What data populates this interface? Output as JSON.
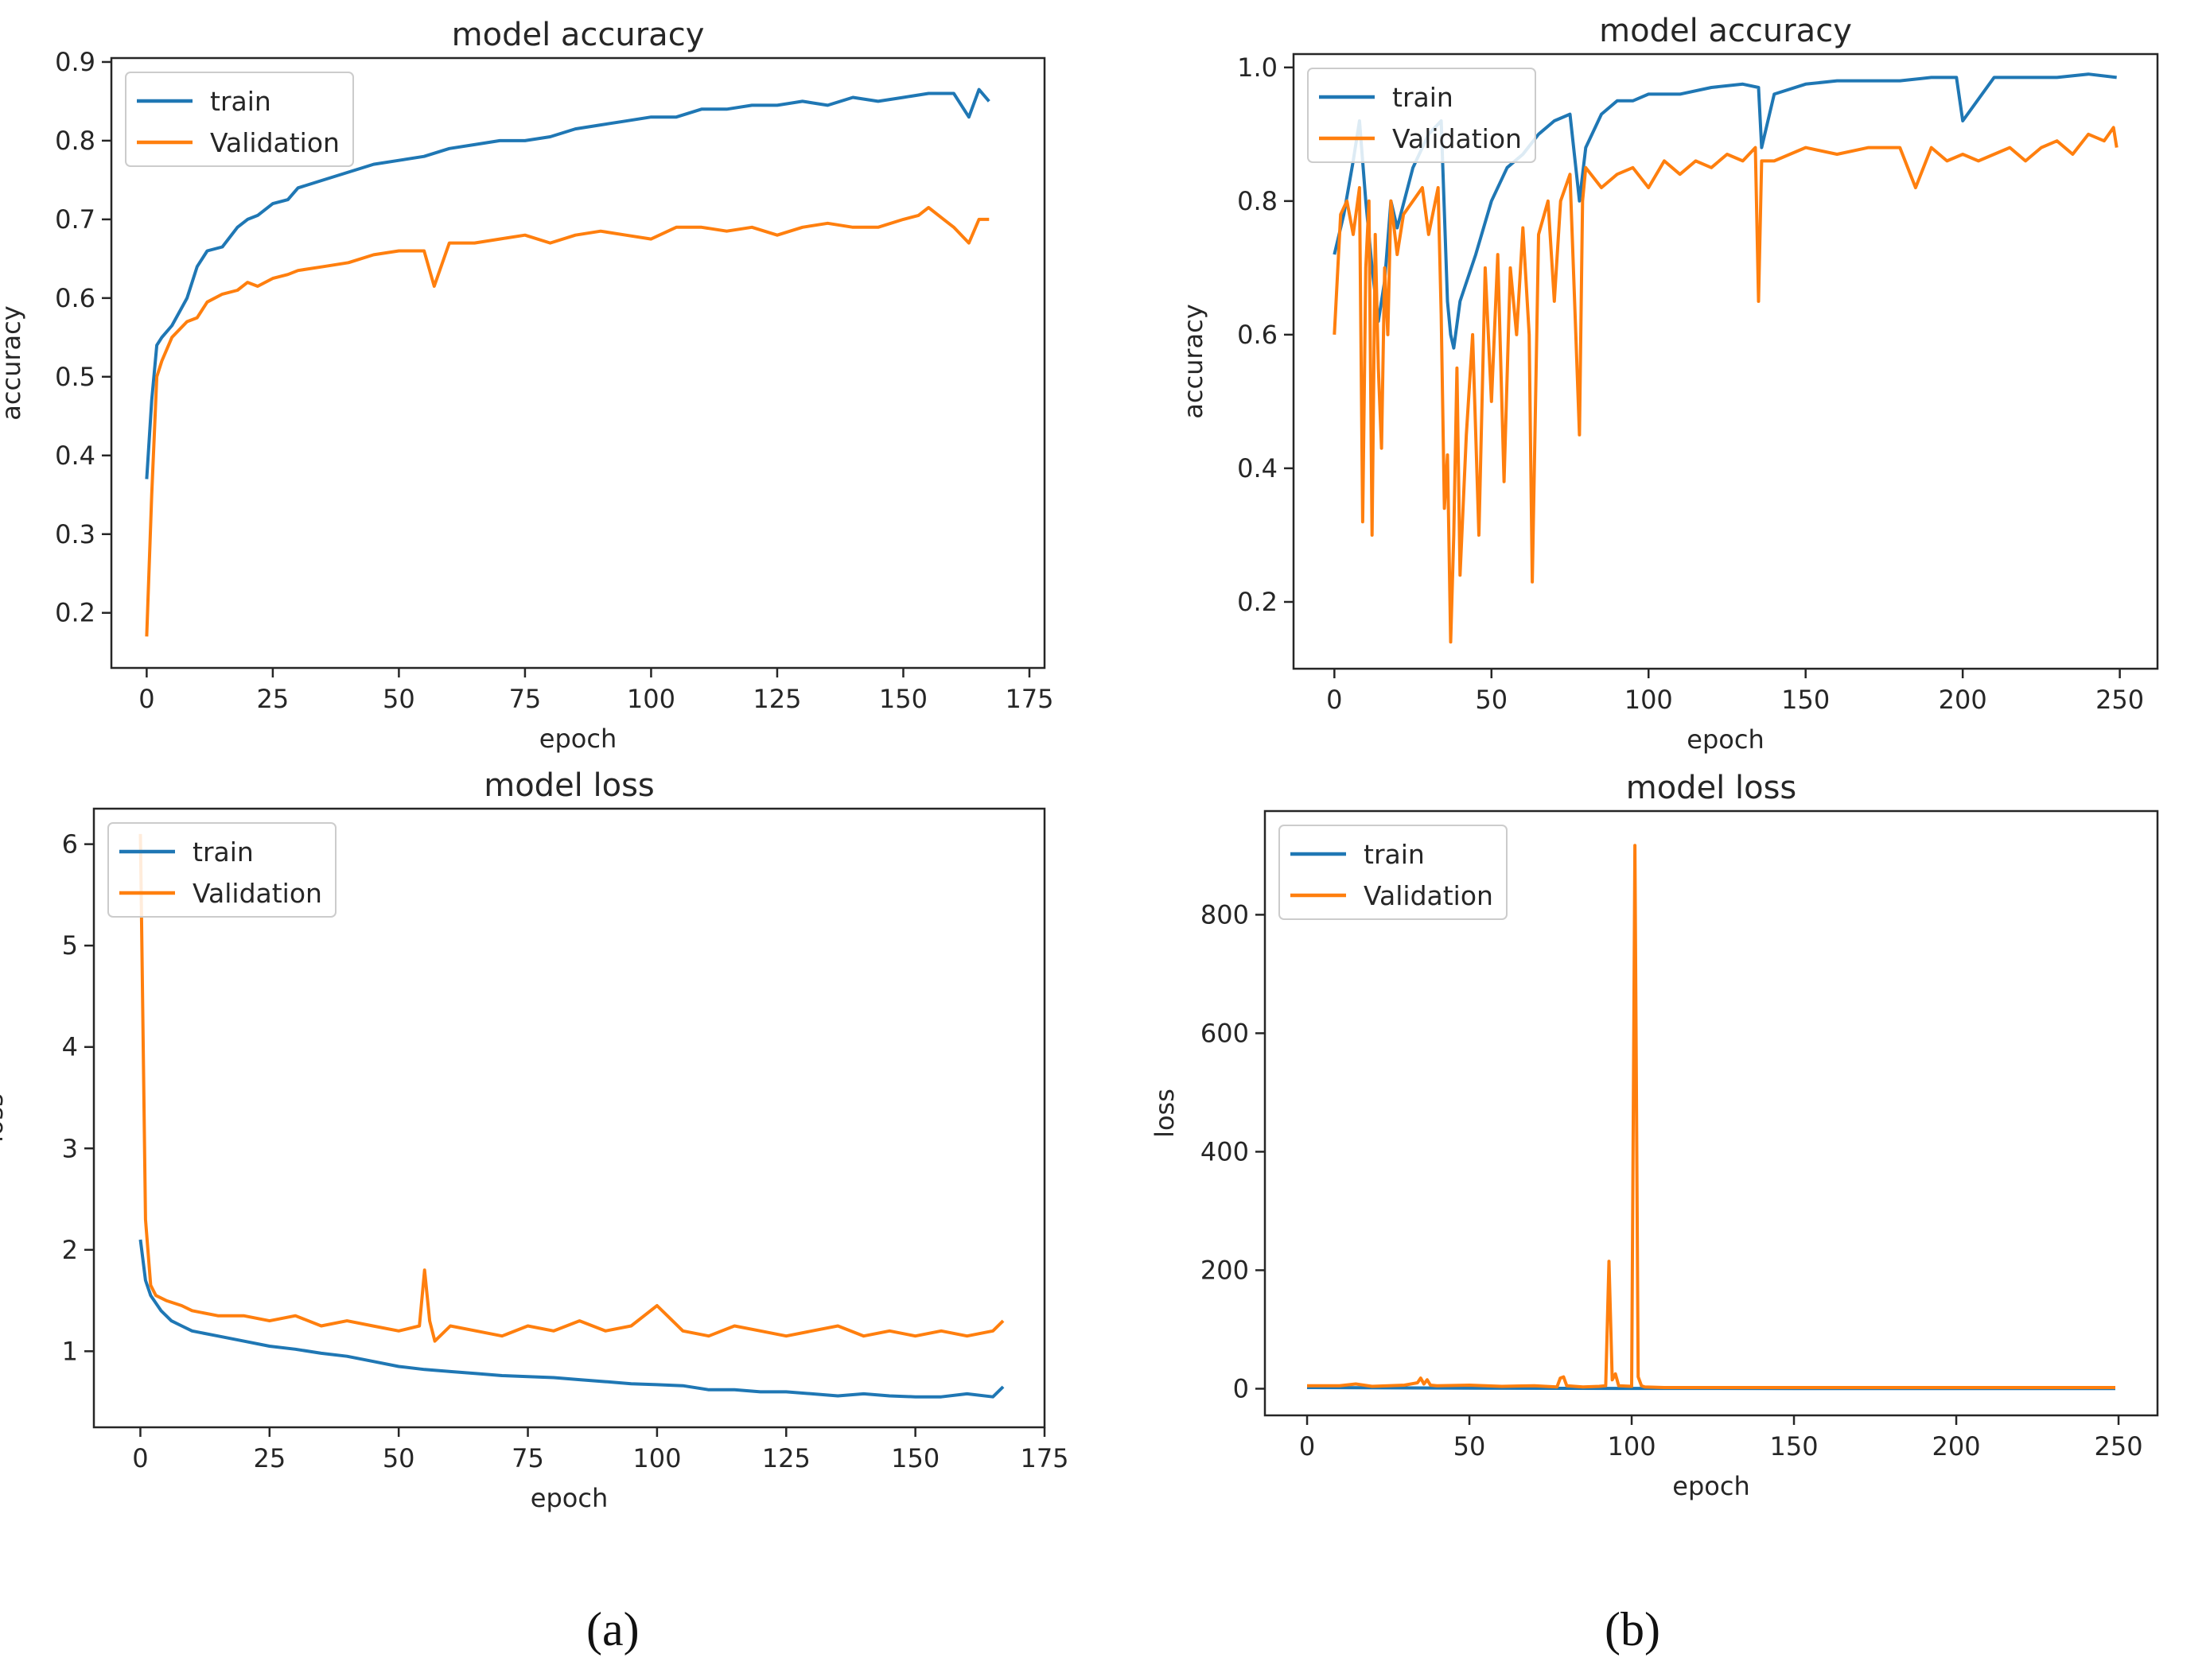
{
  "figure": {
    "captions": [
      "(a)",
      "(b)"
    ],
    "colors": {
      "train": "#1f77b4",
      "validation": "#ff7f0e",
      "axis": "#262626"
    }
  },
  "chart_data": [
    {
      "id": "a-accuracy",
      "type": "line",
      "title": "model accuracy",
      "xlabel": "epoch",
      "ylabel": "accuracy",
      "xlim": [
        -7,
        178
      ],
      "ylim": [
        0.13,
        0.905
      ],
      "xticks": [
        0,
        25,
        50,
        75,
        100,
        125,
        150,
        175
      ],
      "yticks": [
        0.2,
        0.3,
        0.4,
        0.5,
        0.6,
        0.7,
        0.8,
        0.9
      ],
      "xtick_labels": [
        "0",
        "25",
        "50",
        "75",
        "100",
        "125",
        "150",
        "175"
      ],
      "ytick_labels": [
        "0.2",
        "0.3",
        "0.4",
        "0.5",
        "0.6",
        "0.7",
        "0.8",
        "0.9"
      ],
      "legend": "upper-left",
      "series": [
        {
          "name": "train",
          "color": "#1f77b4",
          "x": [
            0,
            1,
            2,
            3,
            5,
            8,
            10,
            12,
            15,
            18,
            20,
            22,
            25,
            28,
            30,
            35,
            40,
            45,
            50,
            55,
            60,
            65,
            70,
            75,
            80,
            85,
            90,
            95,
            100,
            105,
            110,
            115,
            120,
            125,
            130,
            135,
            140,
            145,
            150,
            155,
            160,
            163,
            165,
            167
          ],
          "values": [
            0.37,
            0.47,
            0.54,
            0.55,
            0.565,
            0.6,
            0.64,
            0.66,
            0.665,
            0.69,
            0.7,
            0.705,
            0.72,
            0.725,
            0.74,
            0.75,
            0.76,
            0.77,
            0.775,
            0.78,
            0.79,
            0.795,
            0.8,
            0.8,
            0.805,
            0.815,
            0.82,
            0.825,
            0.83,
            0.83,
            0.84,
            0.84,
            0.845,
            0.845,
            0.85,
            0.845,
            0.855,
            0.85,
            0.855,
            0.86,
            0.86,
            0.83,
            0.865,
            0.85
          ]
        },
        {
          "name": "Validation",
          "color": "#ff7f0e",
          "x": [
            0,
            1,
            2,
            3,
            5,
            8,
            10,
            12,
            15,
            18,
            20,
            22,
            25,
            28,
            30,
            35,
            40,
            45,
            50,
            55,
            57,
            60,
            65,
            70,
            75,
            80,
            85,
            90,
            95,
            100,
            105,
            110,
            115,
            120,
            125,
            130,
            135,
            140,
            145,
            150,
            153,
            155,
            158,
            160,
            163,
            165,
            167
          ],
          "values": [
            0.17,
            0.35,
            0.5,
            0.52,
            0.55,
            0.57,
            0.575,
            0.595,
            0.605,
            0.61,
            0.62,
            0.615,
            0.625,
            0.63,
            0.635,
            0.64,
            0.645,
            0.655,
            0.66,
            0.66,
            0.615,
            0.67,
            0.67,
            0.675,
            0.68,
            0.67,
            0.68,
            0.685,
            0.68,
            0.675,
            0.69,
            0.69,
            0.685,
            0.69,
            0.68,
            0.69,
            0.695,
            0.69,
            0.69,
            0.7,
            0.705,
            0.715,
            0.7,
            0.69,
            0.67,
            0.7,
            0.7
          ]
        }
      ]
    },
    {
      "id": "b-accuracy",
      "type": "line",
      "title": "model accuracy",
      "xlabel": "epoch",
      "ylabel": "accuracy",
      "xlim": [
        -13,
        262
      ],
      "ylim": [
        0.1,
        1.02
      ],
      "xticks": [
        0,
        50,
        100,
        150,
        200,
        250
      ],
      "yticks": [
        0.2,
        0.4,
        0.6,
        0.8,
        1.0
      ],
      "xtick_labels": [
        "0",
        "50",
        "100",
        "150",
        "200",
        "250"
      ],
      "ytick_labels": [
        "0.2",
        "0.4",
        "0.6",
        "0.8",
        "1.0"
      ],
      "legend": "upper-left",
      "series": [
        {
          "name": "train",
          "color": "#1f77b4",
          "x": [
            0,
            3,
            6,
            8,
            10,
            12,
            14,
            16,
            18,
            20,
            25,
            30,
            34,
            36,
            37,
            38,
            40,
            45,
            50,
            55,
            60,
            65,
            70,
            75,
            78,
            80,
            85,
            90,
            95,
            100,
            110,
            120,
            130,
            135,
            136,
            140,
            150,
            160,
            170,
            180,
            190,
            198,
            200,
            210,
            220,
            230,
            240,
            249
          ],
          "values": [
            0.72,
            0.78,
            0.86,
            0.92,
            0.8,
            0.7,
            0.62,
            0.68,
            0.8,
            0.76,
            0.85,
            0.9,
            0.92,
            0.65,
            0.6,
            0.58,
            0.65,
            0.72,
            0.8,
            0.85,
            0.87,
            0.9,
            0.92,
            0.93,
            0.8,
            0.88,
            0.93,
            0.95,
            0.95,
            0.96,
            0.96,
            0.97,
            0.975,
            0.97,
            0.88,
            0.96,
            0.975,
            0.98,
            0.98,
            0.98,
            0.985,
            0.985,
            0.92,
            0.985,
            0.985,
            0.985,
            0.99,
            0.985
          ]
        },
        {
          "name": "Validation",
          "color": "#ff7f0e",
          "x": [
            0,
            2,
            4,
            6,
            8,
            9,
            10,
            11,
            12,
            13,
            14,
            15,
            16,
            17,
            18,
            20,
            22,
            25,
            28,
            30,
            33,
            34,
            35,
            36,
            37,
            38,
            39,
            40,
            42,
            44,
            46,
            48,
            50,
            52,
            54,
            56,
            58,
            60,
            62,
            63,
            65,
            68,
            70,
            72,
            75,
            78,
            79,
            80,
            85,
            90,
            95,
            100,
            105,
            110,
            115,
            120,
            125,
            130,
            134,
            135,
            136,
            140,
            150,
            160,
            170,
            180,
            185,
            190,
            195,
            200,
            205,
            210,
            215,
            220,
            225,
            230,
            235,
            240,
            245,
            248,
            249
          ],
          "values": [
            0.6,
            0.78,
            0.8,
            0.75,
            0.82,
            0.32,
            0.7,
            0.8,
            0.3,
            0.75,
            0.55,
            0.43,
            0.7,
            0.6,
            0.8,
            0.72,
            0.78,
            0.8,
            0.82,
            0.75,
            0.82,
            0.63,
            0.34,
            0.42,
            0.14,
            0.3,
            0.55,
            0.24,
            0.45,
            0.6,
            0.3,
            0.7,
            0.5,
            0.72,
            0.38,
            0.7,
            0.6,
            0.76,
            0.6,
            0.23,
            0.75,
            0.8,
            0.65,
            0.8,
            0.84,
            0.45,
            0.8,
            0.85,
            0.82,
            0.84,
            0.85,
            0.82,
            0.86,
            0.84,
            0.86,
            0.85,
            0.87,
            0.86,
            0.88,
            0.65,
            0.86,
            0.86,
            0.88,
            0.87,
            0.88,
            0.88,
            0.82,
            0.88,
            0.86,
            0.87,
            0.86,
            0.87,
            0.88,
            0.86,
            0.88,
            0.89,
            0.87,
            0.9,
            0.89,
            0.91,
            0.88
          ]
        }
      ]
    },
    {
      "id": "a-loss",
      "type": "line",
      "title": "model loss",
      "xlabel": "epoch",
      "ylabel": "loss",
      "xlim": [
        -9,
        175
      ],
      "ylim": [
        0.25,
        6.35
      ],
      "xticks": [
        0,
        25,
        50,
        75,
        100,
        125,
        150,
        175
      ],
      "yticks": [
        1,
        2,
        3,
        4,
        5,
        6
      ],
      "xtick_labels": [
        "0",
        "25",
        "50",
        "75",
        "100",
        "125",
        "150",
        "175"
      ],
      "ytick_labels": [
        "1",
        "2",
        "3",
        "4",
        "5",
        "6"
      ],
      "legend": "upper-left",
      "series": [
        {
          "name": "train",
          "color": "#1f77b4",
          "x": [
            0,
            1,
            2,
            4,
            6,
            8,
            10,
            15,
            20,
            25,
            30,
            35,
            40,
            45,
            50,
            55,
            60,
            65,
            70,
            75,
            80,
            85,
            90,
            95,
            100,
            105,
            110,
            115,
            120,
            125,
            130,
            135,
            140,
            145,
            150,
            155,
            160,
            165,
            167
          ],
          "values": [
            2.1,
            1.7,
            1.55,
            1.4,
            1.3,
            1.25,
            1.2,
            1.15,
            1.1,
            1.05,
            1.02,
            0.98,
            0.95,
            0.9,
            0.85,
            0.82,
            0.8,
            0.78,
            0.76,
            0.75,
            0.74,
            0.72,
            0.7,
            0.68,
            0.67,
            0.66,
            0.62,
            0.62,
            0.6,
            0.6,
            0.58,
            0.56,
            0.58,
            0.56,
            0.55,
            0.55,
            0.58,
            0.55,
            0.65
          ]
        },
        {
          "name": "Validation",
          "color": "#ff7f0e",
          "x": [
            0,
            1,
            2,
            3,
            5,
            8,
            10,
            15,
            20,
            25,
            30,
            35,
            40,
            45,
            50,
            54,
            55,
            56,
            57,
            60,
            65,
            70,
            75,
            80,
            85,
            90,
            95,
            100,
            105,
            110,
            115,
            120,
            125,
            130,
            135,
            140,
            145,
            150,
            155,
            160,
            165,
            167
          ],
          "values": [
            6.1,
            2.3,
            1.65,
            1.55,
            1.5,
            1.45,
            1.4,
            1.35,
            1.35,
            1.3,
            1.35,
            1.25,
            1.3,
            1.25,
            1.2,
            1.25,
            1.8,
            1.3,
            1.1,
            1.25,
            1.2,
            1.15,
            1.25,
            1.2,
            1.3,
            1.2,
            1.25,
            1.45,
            1.2,
            1.15,
            1.25,
            1.2,
            1.15,
            1.2,
            1.25,
            1.15,
            1.2,
            1.15,
            1.2,
            1.15,
            1.2,
            1.3
          ]
        }
      ]
    },
    {
      "id": "b-loss",
      "type": "line",
      "title": "model loss",
      "xlabel": "epoch",
      "ylabel": "loss",
      "xlim": [
        -13,
        262
      ],
      "ylim": [
        -45,
        975
      ],
      "xticks": [
        0,
        50,
        100,
        150,
        200,
        250
      ],
      "yticks": [
        0,
        200,
        400,
        600,
        800
      ],
      "xtick_labels": [
        "0",
        "50",
        "100",
        "150",
        "200",
        "250"
      ],
      "ytick_labels": [
        "0",
        "200",
        "400",
        "600",
        "800"
      ],
      "legend": "upper-left",
      "series": [
        {
          "name": "train",
          "color": "#1f77b4",
          "x": [
            0,
            50,
            100,
            150,
            200,
            249
          ],
          "values": [
            2,
            1,
            0.5,
            0.3,
            0.2,
            0.2
          ]
        },
        {
          "name": "Validation",
          "color": "#ff7f0e",
          "x": [
            0,
            10,
            15,
            20,
            30,
            34,
            35,
            36,
            37,
            38,
            40,
            50,
            60,
            70,
            77,
            78,
            79,
            80,
            85,
            90,
            92,
            93,
            94,
            95,
            96,
            100,
            101,
            102,
            103,
            104,
            110,
            150,
            200,
            249
          ],
          "values": [
            5,
            5,
            8,
            4,
            6,
            10,
            18,
            8,
            15,
            6,
            5,
            6,
            4,
            5,
            3,
            18,
            20,
            5,
            3,
            4,
            5,
            215,
            15,
            25,
            5,
            4,
            917,
            20,
            5,
            3,
            2,
            2,
            2,
            2
          ]
        }
      ]
    }
  ]
}
